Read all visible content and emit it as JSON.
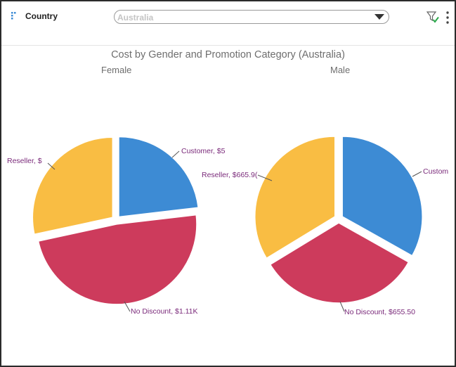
{
  "header": {
    "dimension_label": "Country",
    "dimension_icon": "dimension-icon",
    "select": {
      "value": "Australia",
      "arrow_icon": "caret-down-icon"
    },
    "filter_icon": "filter-check-icon",
    "more_icon": "more-vertical-icon"
  },
  "colors": {
    "customer": "#3d8bd4",
    "reseller": "#f9bd43",
    "no_discount": "#cd3b5c",
    "label": "#7a2a7a"
  },
  "chart_data": {
    "type": "pie",
    "title": "Cost by Gender and Promotion Category (Australia)",
    "categories": [
      "Customer",
      "No Discount",
      "Reseller"
    ],
    "panels": [
      {
        "name": "Female",
        "slices": [
          {
            "category": "Customer",
            "value": 530,
            "label": "Customer, $5"
          },
          {
            "category": "No Discount",
            "value": 1110,
            "label": "No Discount, $1.11K"
          },
          {
            "category": "Reseller",
            "value": 650,
            "label": "Reseller, $"
          }
        ]
      },
      {
        "name": "Male",
        "slices": [
          {
            "category": "Customer",
            "value": 655,
            "label": "Custom"
          },
          {
            "category": "No Discount",
            "value": 655.5,
            "label": "No Discount, $655.50"
          },
          {
            "category": "Reseller",
            "value": 665.9,
            "label": "Reseller, $665.9("
          }
        ]
      }
    ]
  }
}
